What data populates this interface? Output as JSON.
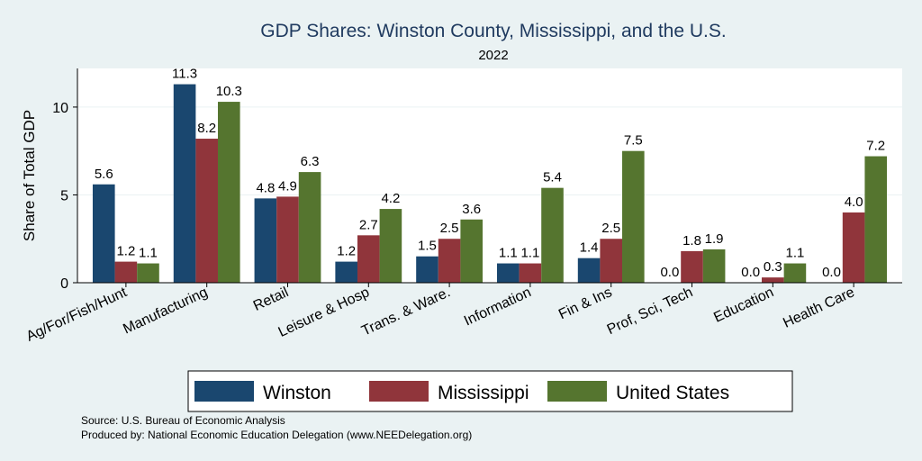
{
  "chart_data": {
    "type": "bar",
    "title": "GDP Shares: Winston County, Mississippi, and the U.S.",
    "subtitle": "2022",
    "ylabel": "Share of Total GDP",
    "xlabel": "",
    "ylim": [
      0,
      12.2
    ],
    "yticks": [
      0,
      5,
      10
    ],
    "grid": true,
    "legend_position": "bottom",
    "categories": [
      "Ag/For/Fish/Hunt",
      "Manufacturing",
      "Retail",
      "Leisure & Hosp",
      "Trans. & Ware.",
      "Information",
      "Fin & Ins",
      "Prof, Sci, Tech",
      "Education",
      "Health Care"
    ],
    "series": [
      {
        "name": "Winston",
        "color": "#1a476f",
        "values": [
          5.6,
          11.3,
          4.8,
          1.2,
          1.5,
          1.1,
          1.4,
          0.0,
          0.0,
          0.0
        ]
      },
      {
        "name": "Mississippi",
        "color": "#90353b",
        "values": [
          1.2,
          8.2,
          4.9,
          2.7,
          2.5,
          1.1,
          2.5,
          1.8,
          0.3,
          4.0
        ]
      },
      {
        "name": "United States",
        "color": "#55752f",
        "values": [
          1.1,
          10.3,
          6.3,
          4.2,
          3.6,
          5.4,
          7.5,
          1.9,
          1.1,
          7.2
        ]
      }
    ]
  },
  "footer": {
    "source": "Source: U.S. Bureau of Economic Analysis",
    "produced_by": "Produced by: National Economic Education Delegation (www.NEEDelegation.org)"
  }
}
